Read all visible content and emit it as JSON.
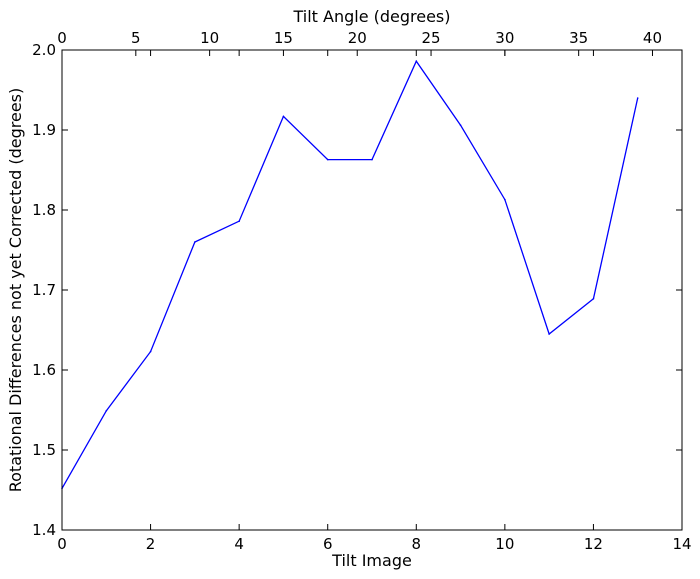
{
  "chart_data": {
    "type": "line",
    "title": "",
    "xlabel": "Tilt Image",
    "ylabel": "Rotational Differences not yet Corrected (degrees)",
    "top_xlabel": "Tilt Angle (degrees)",
    "xlim": [
      0,
      14
    ],
    "ylim": [
      1.4,
      2.0
    ],
    "top_xlim": [
      0,
      42
    ],
    "xticks": [
      0,
      2,
      4,
      6,
      8,
      10,
      12,
      14
    ],
    "yticks": [
      1.4,
      1.5,
      1.6,
      1.7,
      1.8,
      1.9,
      2.0
    ],
    "ytick_labels": [
      "1.4",
      "1.5",
      "1.6",
      "1.7",
      "1.8",
      "1.9",
      "2.0"
    ],
    "top_xticks": [
      0,
      5,
      10,
      15,
      20,
      25,
      30,
      35,
      40
    ],
    "grid": false,
    "series": [
      {
        "color": "#0000ff",
        "x": [
          0,
          1,
          2,
          3,
          4,
          5,
          6,
          7,
          8,
          9,
          10,
          11,
          12,
          13
        ],
        "y": [
          1.452,
          1.549,
          1.623,
          1.76,
          1.786,
          1.917,
          1.863,
          1.863,
          1.986,
          1.906,
          1.813,
          1.645,
          1.689,
          1.94
        ]
      }
    ]
  }
}
